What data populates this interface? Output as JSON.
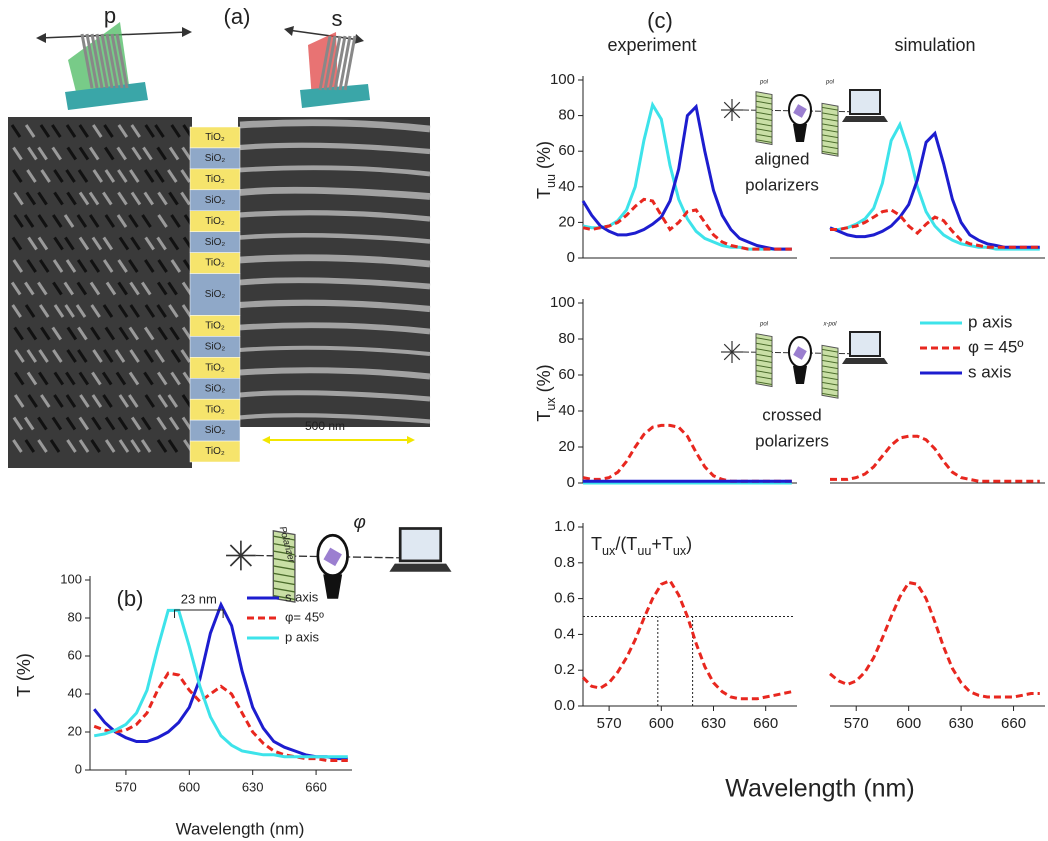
{
  "panel_a": {
    "label": "(a)",
    "p": "p",
    "s": "s",
    "layers": [
      "TiO₂",
      "SiO₂",
      "TiO₂",
      "SiO₂",
      "TiO₂",
      "SiO₂",
      "TiO₂",
      "SiO₂",
      "TiO₂",
      "SiO₂",
      "TiO₂",
      "SiO₂",
      "TiO₂",
      "SiO₂",
      "TiO₂"
    ],
    "scale_bar": "500 nm"
  },
  "panel_b": {
    "label": "(b)",
    "inset": [
      "Polarizer",
      "φ"
    ]
  },
  "panel_c": {
    "label": "(c)",
    "columns": [
      "experiment",
      "simulation"
    ],
    "xlabel": "Wavelength (nm)",
    "aligned": [
      "aligned",
      "polarizers"
    ],
    "crossed": [
      "crossed",
      "polarizers"
    ],
    "inset_aligned": [
      "pol",
      "pol"
    ],
    "inset_crossed": [
      "pol",
      "x-pol"
    ]
  },
  "chart_data": [
    {
      "type": "line",
      "xlabel": "Wavelength (nm)",
      "ylabel": [
        {
          "text": "T"
        },
        {
          "text": "  (%)"
        }
      ],
      "x": [
        555,
        560,
        565,
        570,
        575,
        580,
        585,
        590,
        595,
        600,
        605,
        610,
        615,
        620,
        625,
        630,
        635,
        640,
        645,
        650,
        655,
        660,
        665,
        670,
        675
      ],
      "xlim": [
        553,
        677
      ],
      "xticks": [
        570,
        600,
        630,
        660
      ],
      "ylim": [
        0,
        100
      ],
      "yticks": [
        0,
        20,
        40,
        60,
        80,
        100
      ],
      "legend": "upper right",
      "annotation": {
        "text": "23 nm",
        "x": [
          593,
          616
        ]
      },
      "series": [
        {
          "name": "s axis",
          "color": "#1d1dcf",
          "values": [
            32,
            25,
            20,
            17,
            15,
            15,
            17,
            20,
            25,
            33,
            48,
            72,
            87,
            76,
            52,
            33,
            22,
            15,
            12,
            10,
            8,
            7,
            7,
            6,
            6
          ]
        },
        {
          "name": "φ= 45º",
          "color": "#e8271f",
          "dashed": true,
          "values": [
            23,
            21,
            20,
            21,
            24,
            30,
            42,
            51,
            50,
            42,
            36,
            40,
            44,
            40,
            30,
            20,
            14,
            10,
            8,
            7,
            6,
            6,
            5,
            5,
            5
          ]
        },
        {
          "name": "p axis",
          "color": "#3de3ea",
          "values": [
            18,
            19,
            21,
            24,
            30,
            42,
            64,
            84,
            84,
            65,
            44,
            28,
            18,
            13,
            10,
            9,
            8,
            8,
            7,
            7,
            7,
            7,
            7,
            7,
            7
          ]
        }
      ]
    },
    {
      "type": "line",
      "ylabel": [
        {
          "text": "T"
        },
        {
          "sub": "uu"
        },
        {
          "text": " (%)"
        }
      ],
      "x": [
        555,
        560,
        565,
        570,
        575,
        580,
        585,
        590,
        595,
        600,
        605,
        610,
        615,
        620,
        625,
        630,
        635,
        640,
        645,
        650,
        655,
        660,
        665,
        670,
        675
      ],
      "xlim": [
        555,
        678
      ],
      "ylim": [
        0,
        100
      ],
      "yticks": [
        0,
        20,
        40,
        60,
        80,
        100
      ],
      "series": [
        {
          "color": "#3de3ea",
          "values": [
            18,
            17,
            17,
            18,
            21,
            27,
            40,
            66,
            86,
            78,
            52,
            33,
            22,
            15,
            11,
            9,
            7,
            6,
            6,
            5,
            5,
            5,
            5,
            5,
            5
          ]
        },
        {
          "color": "#1d1dcf",
          "values": [
            32,
            24,
            18,
            15,
            13,
            13,
            14,
            16,
            19,
            23,
            32,
            50,
            80,
            85,
            60,
            38,
            24,
            16,
            11,
            9,
            7,
            6,
            5,
            5,
            5
          ]
        },
        {
          "color": "#e8271f",
          "dashed": true,
          "values": [
            17,
            16,
            17,
            18,
            20,
            24,
            29,
            33,
            32,
            24,
            16,
            20,
            26,
            27,
            20,
            13,
            9,
            7,
            6,
            5,
            5,
            5,
            5,
            5,
            5
          ]
        }
      ]
    },
    {
      "type": "line",
      "x": [
        555,
        560,
        565,
        570,
        575,
        580,
        585,
        590,
        595,
        600,
        605,
        610,
        615,
        620,
        625,
        630,
        635,
        640,
        645,
        650,
        655,
        660,
        665,
        670,
        675
      ],
      "xlim": [
        555,
        678
      ],
      "ylim": [
        0,
        100
      ],
      "series": [
        {
          "color": "#3de3ea",
          "values": [
            16,
            16,
            17,
            19,
            22,
            28,
            42,
            66,
            75,
            60,
            40,
            26,
            18,
            13,
            10,
            8,
            7,
            6,
            6,
            5,
            5,
            5,
            5,
            5,
            5
          ]
        },
        {
          "color": "#1d1dcf",
          "values": [
            17,
            15,
            13,
            12,
            12,
            13,
            15,
            18,
            23,
            30,
            44,
            65,
            70,
            53,
            33,
            20,
            13,
            10,
            8,
            7,
            6,
            6,
            6,
            6,
            6
          ]
        },
        {
          "color": "#e8271f",
          "dashed": true,
          "values": [
            16,
            16,
            17,
            18,
            20,
            23,
            26,
            27,
            24,
            18,
            14,
            19,
            23,
            21,
            15,
            10,
            8,
            7,
            6,
            6,
            6,
            6,
            6,
            6,
            6
          ]
        }
      ]
    },
    {
      "type": "line",
      "ylabel": [
        {
          "text": "T"
        },
        {
          "sub": "ux"
        },
        {
          "text": " (%)"
        }
      ],
      "x": [
        555,
        560,
        565,
        570,
        575,
        580,
        585,
        590,
        595,
        600,
        605,
        610,
        615,
        620,
        625,
        630,
        635,
        640,
        645,
        650,
        655,
        660,
        665,
        670,
        675
      ],
      "xlim": [
        555,
        678
      ],
      "ylim": [
        0,
        100
      ],
      "yticks": [
        0,
        20,
        40,
        60,
        80,
        100
      ],
      "legend": "upper right",
      "series": [
        {
          "name": "p axis",
          "color": "#3de3ea",
          "values": [
            0,
            0,
            0,
            0,
            0,
            0,
            0,
            0,
            0,
            0,
            0,
            0,
            0,
            0,
            0,
            0,
            0,
            0,
            0,
            0,
            0,
            0,
            0,
            0,
            0
          ]
        },
        {
          "name": "φ = 45º",
          "color": "#e8271f",
          "dashed": true,
          "values": [
            3,
            2,
            2,
            3,
            6,
            12,
            20,
            27,
            31,
            32,
            32,
            31,
            26,
            17,
            9,
            4,
            2,
            1,
            1,
            1,
            1,
            1,
            1,
            1,
            1
          ]
        },
        {
          "name": "s axis",
          "color": "#1d1dcf",
          "values": [
            1,
            1,
            1,
            1,
            1,
            1,
            1,
            1,
            1,
            1,
            1,
            1,
            1,
            1,
            1,
            1,
            1,
            1,
            1,
            1,
            1,
            1,
            1,
            1,
            1
          ]
        }
      ]
    },
    {
      "type": "line",
      "x": [
        555,
        560,
        565,
        570,
        575,
        580,
        585,
        590,
        595,
        600,
        605,
        610,
        615,
        620,
        625,
        630,
        635,
        640,
        645,
        650,
        655,
        660,
        665,
        670,
        675
      ],
      "xlim": [
        555,
        678
      ],
      "ylim": [
        0,
        100
      ],
      "series": [
        {
          "color": "#e8271f",
          "dashed": true,
          "values": [
            2,
            2,
            2,
            3,
            5,
            9,
            15,
            21,
            25,
            26,
            26,
            24,
            19,
            12,
            6,
            3,
            2,
            1,
            1,
            1,
            1,
            1,
            1,
            1,
            1
          ]
        }
      ]
    },
    {
      "type": "line",
      "x": [
        555,
        560,
        565,
        570,
        575,
        580,
        585,
        590,
        595,
        600,
        605,
        610,
        615,
        620,
        625,
        630,
        635,
        640,
        645,
        650,
        655,
        660,
        665,
        670,
        675
      ],
      "xlim": [
        555,
        678
      ],
      "xticks": [
        570,
        600,
        630,
        660
      ],
      "ylim": [
        0,
        1
      ],
      "yticks": [
        {
          "value": 0,
          "label": "0.0"
        },
        {
          "value": 0.2,
          "label": "0.2"
        },
        {
          "value": 0.4,
          "label": "0.4"
        },
        {
          "value": 0.6,
          "label": "0.6"
        },
        {
          "value": 0.8,
          "label": "0.8"
        },
        {
          "value": 1,
          "label": "1.0"
        }
      ],
      "annotation_parts": [
        {
          "text": "T"
        },
        {
          "sub": "ux"
        },
        {
          "text": "/(T"
        },
        {
          "sub": "uu"
        },
        {
          "text": "+T"
        },
        {
          "sub": "ux"
        },
        {
          "text": ")"
        }
      ],
      "reference_lines": {
        "y": 0.5,
        "x": [
          598,
          618
        ]
      },
      "series": [
        {
          "color": "#e8271f",
          "dashed": true,
          "values": [
            0.16,
            0.11,
            0.1,
            0.13,
            0.19,
            0.27,
            0.37,
            0.49,
            0.6,
            0.68,
            0.7,
            0.62,
            0.5,
            0.35,
            0.22,
            0.13,
            0.08,
            0.05,
            0.04,
            0.04,
            0.04,
            0.05,
            0.06,
            0.07,
            0.08
          ]
        }
      ]
    },
    {
      "type": "line",
      "x": [
        555,
        560,
        565,
        570,
        575,
        580,
        585,
        590,
        595,
        600,
        605,
        610,
        615,
        620,
        625,
        630,
        635,
        640,
        645,
        650,
        655,
        660,
        665,
        670,
        675
      ],
      "xlim": [
        555,
        678
      ],
      "xticks": [
        570,
        600,
        630,
        660
      ],
      "ylim": [
        0,
        1
      ],
      "series": [
        {
          "color": "#e8271f",
          "dashed": true,
          "values": [
            0.18,
            0.14,
            0.12,
            0.14,
            0.19,
            0.27,
            0.38,
            0.5,
            0.61,
            0.69,
            0.68,
            0.6,
            0.47,
            0.33,
            0.21,
            0.13,
            0.08,
            0.06,
            0.05,
            0.05,
            0.05,
            0.05,
            0.06,
            0.07,
            0.07
          ]
        }
      ]
    }
  ]
}
